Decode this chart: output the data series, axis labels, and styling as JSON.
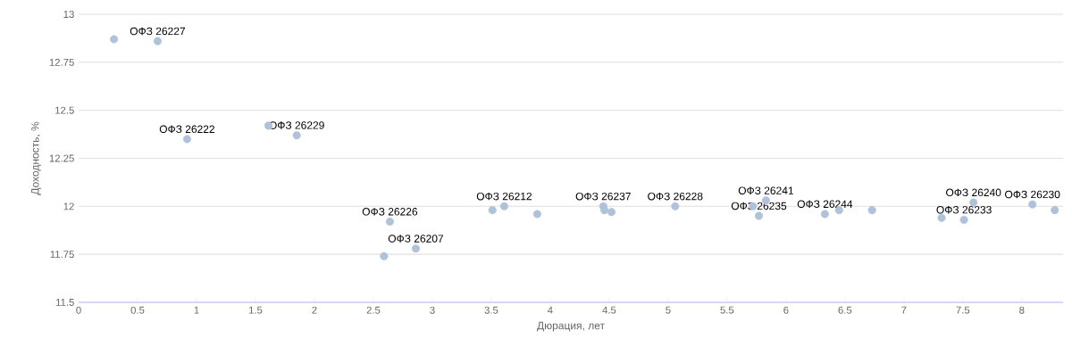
{
  "chart_data": {
    "type": "scatter",
    "xlabel": "Дюрация, лет",
    "ylabel": "Доходность, %",
    "x": [
      0.3,
      0.67,
      0.92,
      1.61,
      1.85,
      2.59,
      2.64,
      2.86,
      3.51,
      3.61,
      3.89,
      4.45,
      4.46,
      4.52,
      5.06,
      5.72,
      5.77,
      5.83,
      6.33,
      6.45,
      6.73,
      7.32,
      7.51,
      7.59,
      8.09,
      8.28
    ],
    "values": [
      12.87,
      12.86,
      12.35,
      12.42,
      12.37,
      11.74,
      11.92,
      11.78,
      11.98,
      12.0,
      11.96,
      12.0,
      11.98,
      11.97,
      12.0,
      12.0,
      11.95,
      12.03,
      11.96,
      11.98,
      11.98,
      11.94,
      11.93,
      12.02,
      12.01,
      11.98
    ],
    "value_labels": [
      null,
      "ОФЗ 26227",
      "ОФЗ 26222",
      null,
      "ОФЗ 26229",
      null,
      "ОФЗ 26226",
      "ОФЗ 26207",
      null,
      "ОФЗ 26212",
      null,
      "ОФЗ 26237",
      null,
      null,
      "ОФЗ 26228",
      null,
      "ОФЗ 26235",
      "ОФЗ 26241",
      "ОФЗ 26244",
      null,
      null,
      null,
      "ОФЗ 26233",
      "ОФЗ 26240",
      "ОФЗ 26230",
      null
    ],
    "color": "#b0c2da",
    "grid": "y",
    "xlim": [
      0,
      8.35
    ],
    "ylim": [
      11.5,
      13
    ],
    "xticks": [
      0,
      0.5,
      1,
      1.5,
      2,
      2.5,
      3,
      3.5,
      4,
      4.5,
      5,
      5.5,
      6,
      6.5,
      7,
      7.5,
      8
    ],
    "yticks": [
      11.5,
      11.75,
      12,
      12.25,
      12.5,
      12.75,
      13
    ]
  }
}
